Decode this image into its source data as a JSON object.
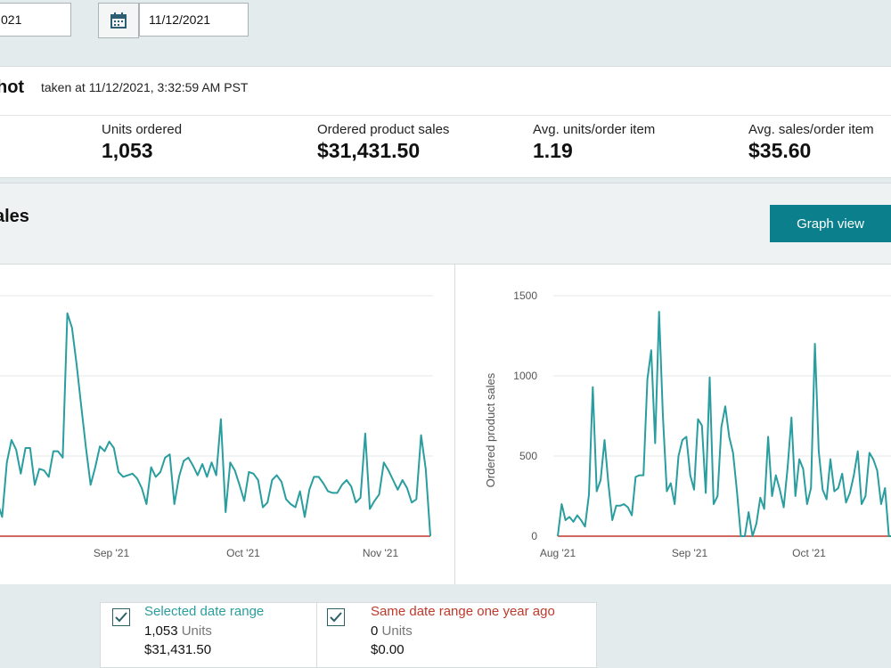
{
  "date_range": {
    "start": "021",
    "end": "11/12/2021"
  },
  "icons": {
    "calendar": "calendar-icon",
    "checkbox": "checkmark-icon"
  },
  "snapshot": {
    "title": "hot",
    "taken_at": "taken at 11/12/2021, 3:32:59 AM PST",
    "metrics": [
      {
        "label": "Units ordered",
        "value": "1,053"
      },
      {
        "label": "Ordered product sales",
        "value": "$31,431.50"
      },
      {
        "label": "Avg. units/order item",
        "value": "1.19"
      },
      {
        "label": "Avg. sales/order item",
        "value": "$35.60"
      }
    ]
  },
  "sales": {
    "title": "ales",
    "graph_view_label": "Graph view"
  },
  "colors": {
    "teal": "#2a9d9f",
    "red": "#c0392b",
    "button": "#0b7f8c"
  },
  "legend": {
    "selected": {
      "label": "Selected date range",
      "units_value": "1,053",
      "units_word": "Units",
      "sales": "$31,431.50"
    },
    "previous": {
      "label": "Same date range one year ago",
      "units_value": "0",
      "units_word": "Units",
      "sales": "$0.00"
    }
  },
  "chart_data": [
    {
      "type": "line",
      "title": "",
      "xlabel": "",
      "ylabel": "",
      "x_ticks": [
        "Sep '21",
        "Oct '21",
        "Nov '21"
      ],
      "series": [
        {
          "values": [
            24,
            21,
            12,
            46,
            60,
            54,
            39,
            55,
            55,
            32,
            42,
            41,
            37,
            53,
            53,
            49,
            139,
            130,
            107,
            81,
            55,
            32,
            43,
            56,
            53,
            59,
            55,
            40,
            37,
            38,
            39,
            36,
            30,
            20,
            43,
            37,
            40,
            49,
            51,
            20,
            37,
            47,
            49,
            44,
            38,
            45,
            37,
            46,
            38,
            73,
            15,
            46,
            41,
            32,
            22,
            40,
            39,
            35,
            18,
            21,
            35,
            38,
            34,
            23,
            20,
            18,
            28,
            12,
            29,
            37,
            37,
            33,
            28,
            27,
            27,
            32,
            35,
            31,
            21,
            24,
            64,
            17,
            22,
            26,
            46,
            41,
            35,
            29,
            35,
            30,
            21,
            23,
            63,
            42,
            0
          ]
        },
        {
          "values": [
            0,
            0,
            0,
            0,
            0,
            0,
            0,
            0,
            0,
            0,
            0,
            0,
            0,
            0,
            0,
            0,
            0,
            0,
            0,
            0,
            0,
            0,
            0,
            0,
            0,
            0,
            0,
            0,
            0,
            0,
            0,
            0,
            0,
            0,
            0,
            0,
            0,
            0,
            0,
            0,
            0,
            0,
            0,
            0,
            0,
            0,
            0,
            0,
            0,
            0,
            0,
            0,
            0,
            0,
            0,
            0,
            0,
            0,
            0,
            0,
            0,
            0,
            0,
            0,
            0,
            0,
            0,
            0,
            0,
            0,
            0,
            0,
            0,
            0,
            0,
            0,
            0,
            0,
            0,
            0,
            0,
            0,
            0,
            0,
            0,
            0,
            0,
            0,
            0,
            0,
            0,
            0,
            0,
            0,
            0
          ]
        }
      ]
    },
    {
      "type": "line",
      "title": "",
      "xlabel": "",
      "ylabel": "Ordered product sales",
      "ylim": [
        0,
        1500
      ],
      "y_ticks": [
        0,
        500,
        1000,
        1500
      ],
      "x_ticks": [
        "Aug '21",
        "Sep '21",
        "Oct '21"
      ],
      "series": [
        {
          "values": [
            0,
            200,
            100,
            120,
            90,
            130,
            100,
            60,
            260,
            930,
            280,
            350,
            600,
            330,
            100,
            190,
            190,
            200,
            180,
            130,
            370,
            380,
            380,
            980,
            1160,
            580,
            1400,
            750,
            280,
            330,
            200,
            500,
            600,
            620,
            380,
            290,
            730,
            690,
            270,
            990,
            200,
            250,
            680,
            810,
            620,
            520,
            280,
            0,
            0,
            150,
            0,
            80,
            240,
            170,
            620,
            250,
            380,
            290,
            180,
            430,
            740,
            250,
            480,
            420,
            200,
            300,
            1200,
            530,
            290,
            230,
            480,
            280,
            300,
            390,
            210,
            270,
            380,
            530,
            200,
            250,
            520,
            480,
            410,
            200,
            300,
            0,
            0
          ]
        },
        {
          "values": [
            0,
            0,
            0,
            0,
            0,
            0,
            0,
            0,
            0,
            0,
            0,
            0,
            0,
            0,
            0,
            0,
            0,
            0,
            0,
            0,
            0,
            0,
            0,
            0,
            0,
            0,
            0,
            0,
            0,
            0,
            0,
            0,
            0,
            0,
            0,
            0,
            0,
            0,
            0,
            0,
            0,
            0,
            0,
            0,
            0,
            0,
            0,
            0,
            0,
            0,
            0,
            0,
            0,
            0,
            0,
            0,
            0,
            0,
            0,
            0,
            0,
            0,
            0,
            0,
            0,
            0,
            0,
            0,
            0,
            0,
            0,
            0,
            0,
            0,
            0,
            0,
            0,
            0,
            0,
            0,
            0,
            0,
            0,
            0,
            0,
            0,
            0
          ]
        }
      ]
    }
  ]
}
